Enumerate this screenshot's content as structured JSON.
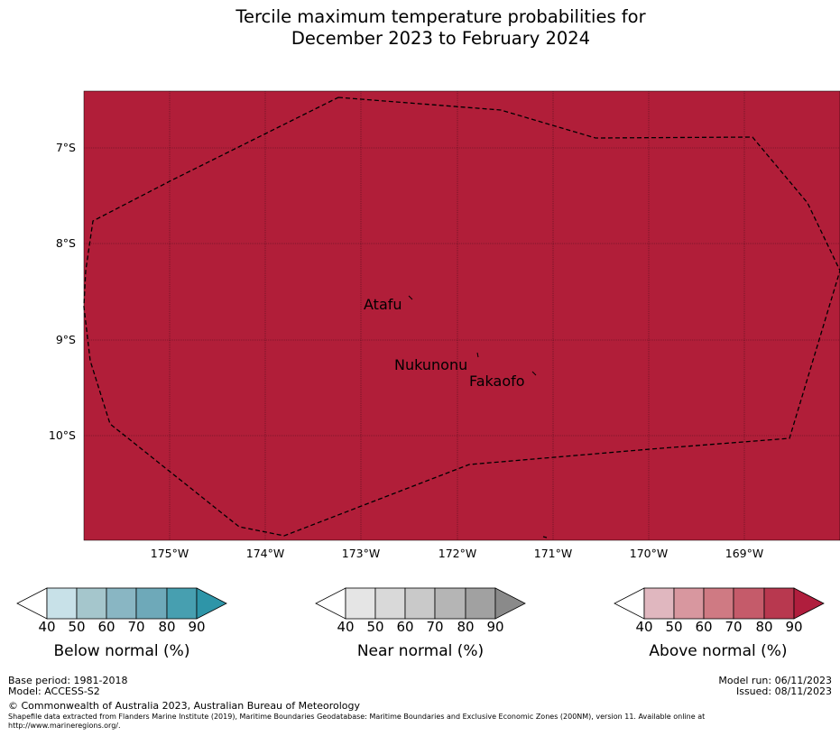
{
  "title": {
    "line1": "Tercile maximum temperature probabilities for",
    "line2": "December 2023 to February 2024"
  },
  "map": {
    "fill_color": "#b11e39",
    "boundary_line": "eez-boundary-dashed",
    "lat_labels": [
      "7°S",
      "8°S",
      "9°S",
      "10°S"
    ],
    "lon_labels": [
      "175°W",
      "174°W",
      "173°W",
      "172°W",
      "171°W",
      "170°W",
      "169°W"
    ],
    "places": [
      "Atafu",
      "Nukunonu",
      "Fakaofo"
    ]
  },
  "colorbars": [
    {
      "label": "Below normal (%)",
      "ticks": [
        "40",
        "50",
        "60",
        "70",
        "80",
        "90"
      ],
      "colors": [
        "#ffffff",
        "#c8e1e8",
        "#a5c6cc",
        "#89b6c3",
        "#6ea9b9",
        "#479fb0",
        "#2e95a8"
      ]
    },
    {
      "label": "Near normal (%)",
      "ticks": [
        "40",
        "50",
        "60",
        "70",
        "80",
        "90"
      ],
      "colors": [
        "#ffffff",
        "#e5e5e5",
        "#d9d9d9",
        "#c9c9c9",
        "#b5b5b5",
        "#a1a1a1",
        "#8a8a8a"
      ]
    },
    {
      "label": "Above normal (%)",
      "ticks": [
        "40",
        "50",
        "60",
        "70",
        "80",
        "90"
      ],
      "colors": [
        "#ffffff",
        "#e0b7bf",
        "#d8979f",
        "#cf7a83",
        "#c55b6a",
        "#b8384f",
        "#b01e3d"
      ]
    }
  ],
  "footer": {
    "base_period": "Base period: 1981-2018",
    "model": "Model: ACCESS-S2",
    "model_run": "Model run: 06/11/2023",
    "issued": "Issued: 08/11/2023",
    "copyright": "© Commonwealth of Australia 2023, Australian Bureau of Meteorology",
    "shapefile_line1": "Shapefile data extracted from Flanders Marine Institute (2019), Maritime Boundaries Geodatabase: Maritime Boundaries and Exclusive Economic Zones (200NM), version 11. Available online at",
    "shapefile_line2": "http://www.marineregions.org/."
  }
}
